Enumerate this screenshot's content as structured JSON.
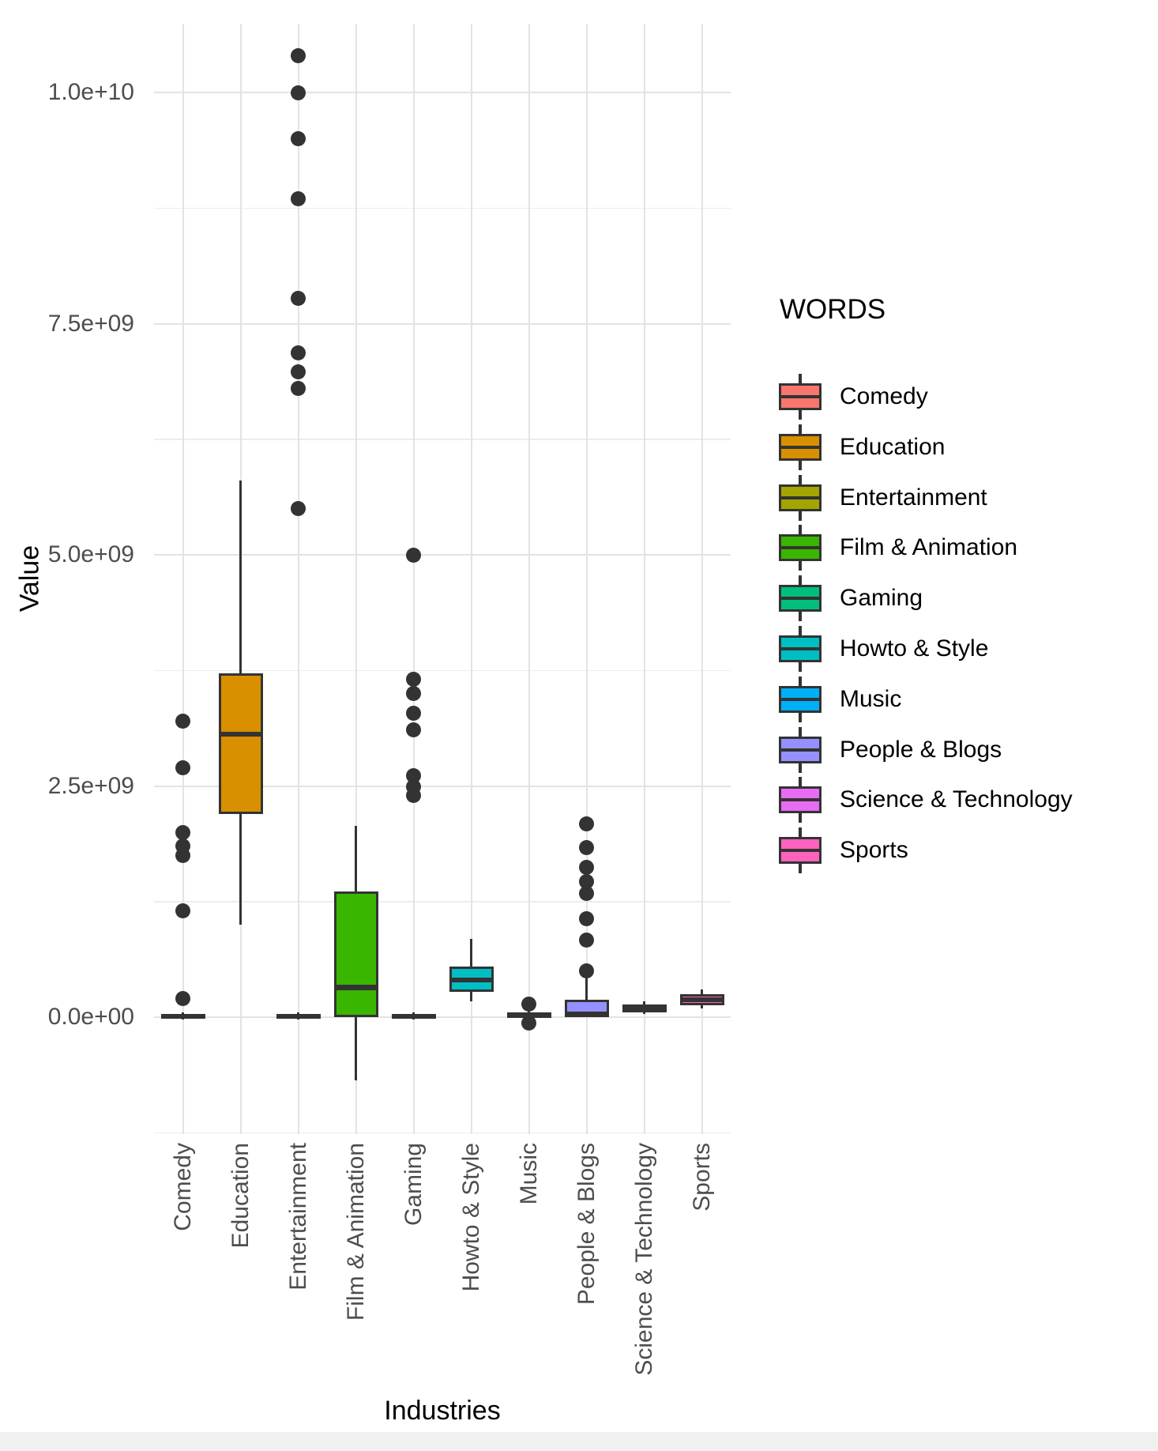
{
  "figure": {
    "background_color": "#FFFFFF",
    "stroke_color": "#333333",
    "grid_major_color": "#E3E3E3",
    "grid_minor_color": "#EDEDED",
    "tick_text_color": "#4D4D4D",
    "title_text_color": "#000000"
  },
  "chart_data": {
    "type": "boxplot",
    "title": "",
    "xlabel": "Industries",
    "ylabel": "Value",
    "legend_title": "WORDS",
    "legend_position": "right",
    "grid": "major+minor horizontal, major vertical",
    "ylim": [
      -1250000000.0,
      10750000000.0
    ],
    "y_ticks": [
      {
        "label": "1.0e+10",
        "value": 10000000000.0
      },
      {
        "label": "7.5e+09",
        "value": 7500000000.0
      },
      {
        "label": "5.0e+09",
        "value": 5000000000.0
      },
      {
        "label": "2.5e+09",
        "value": 2500000000.0
      },
      {
        "label": "0.0e+00",
        "value": 0.0
      }
    ],
    "categories": [
      "Comedy",
      "Education",
      "Entertainment",
      "Film & Animation",
      "Gaming",
      "Howto & Style",
      "Music",
      "People & Blogs",
      "Science & Technology",
      "Sports"
    ],
    "series": [
      {
        "name": "Comedy",
        "color": "#F8766D",
        "stats": {
          "whislo": -30000000.0,
          "q1": -10000000.0,
          "med": 10000000.0,
          "q3": 30000000.0,
          "whishi": 50000000.0
        },
        "outliers": [
          200000000.0,
          1150000000.0,
          1750000000.0,
          1850000000.0,
          2000000000.0,
          2700000000.0,
          3200000000.0
        ]
      },
      {
        "name": "Education",
        "color": "#D89000",
        "stats": {
          "whislo": 1000000000.0,
          "q1": 2200000000.0,
          "med": 3060000000.0,
          "q3": 3720000000.0,
          "whishi": 5800000000.0
        },
        "outliers": []
      },
      {
        "name": "Entertainment",
        "color": "#A3A500",
        "stats": {
          "whislo": -30000000.0,
          "q1": -10000000.0,
          "med": 10000000.0,
          "q3": 30000000.0,
          "whishi": 50000000.0
        },
        "outliers": [
          5500000000.0,
          6800000000.0,
          6980000000.0,
          7180000000.0,
          7770000000.0,
          8850000000.0,
          9500000000.0,
          10000000000.0,
          10400000000.0
        ]
      },
      {
        "name": "Film & Animation",
        "color": "#39B600",
        "stats": {
          "whislo": -680000000.0,
          "q1": 0.0,
          "med": 320000000.0,
          "q3": 1360000000.0,
          "whishi": 2070000000.0
        },
        "outliers": []
      },
      {
        "name": "Gaming",
        "color": "#00BF7D",
        "stats": {
          "whislo": -30000000.0,
          "q1": -10000000.0,
          "med": 10000000.0,
          "q3": 30000000.0,
          "whishi": 50000000.0
        },
        "outliers": [
          2400000000.0,
          2490000000.0,
          2610000000.0,
          3110000000.0,
          3290000000.0,
          3500000000.0,
          3650000000.0,
          5000000000.0
        ]
      },
      {
        "name": "Howto & Style",
        "color": "#00BFC4",
        "stats": {
          "whislo": 170000000.0,
          "q1": 270000000.0,
          "med": 400000000.0,
          "q3": 550000000.0,
          "whishi": 850000000.0
        },
        "outliers": []
      },
      {
        "name": "Music",
        "color": "#00B0F6",
        "stats": {
          "whislo": -20000000.0,
          "q1": 0.0,
          "med": 20000000.0,
          "q3": 50000000.0,
          "whishi": 80000000.0
        },
        "outliers": [
          140000000.0,
          -60000000.0
        ]
      },
      {
        "name": "People & Blogs",
        "color": "#9590FF",
        "stats": {
          "whislo": 0.0,
          "q1": 0.0,
          "med": 30000000.0,
          "q3": 190000000.0,
          "whishi": 430000000.0
        },
        "outliers": [
          500000000.0,
          830000000.0,
          1060000000.0,
          1340000000.0,
          1470000000.0,
          1620000000.0,
          1830000000.0,
          2090000000.0
        ]
      },
      {
        "name": "Science & Technology",
        "color": "#E76BF3",
        "stats": {
          "whislo": 30000000.0,
          "q1": 50000000.0,
          "med": 90000000.0,
          "q3": 140000000.0,
          "whishi": 170000000.0
        },
        "outliers": []
      },
      {
        "name": "Sports",
        "color": "#FF62BC",
        "stats": {
          "whislo": 90000000.0,
          "q1": 130000000.0,
          "med": 190000000.0,
          "q3": 250000000.0,
          "whishi": 300000000.0
        },
        "outliers": []
      }
    ]
  }
}
